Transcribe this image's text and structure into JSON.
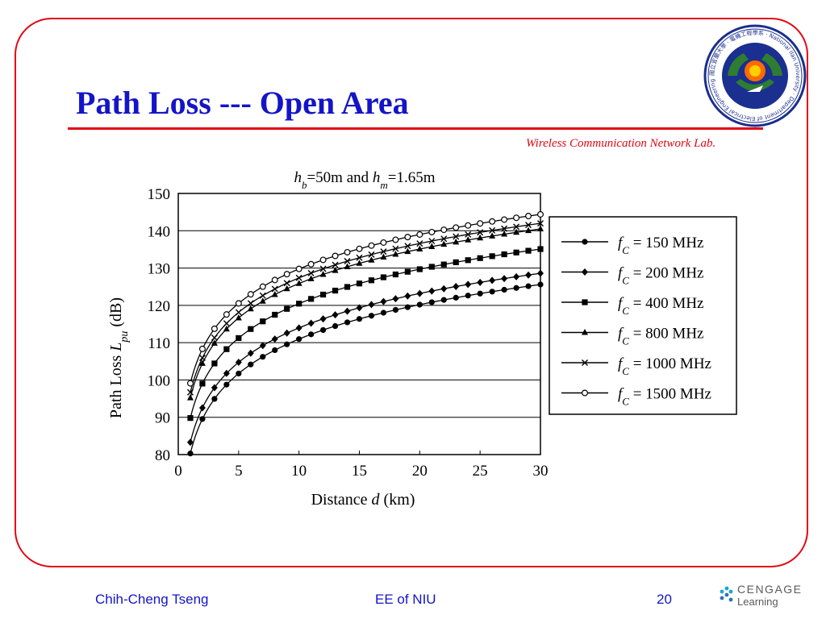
{
  "slide": {
    "title": "Path Loss --- Open Area",
    "lab_name": "Wireless Communication Network Lab."
  },
  "footer": {
    "author": "Chih-Cheng Tseng",
    "department": "EE of NIU",
    "page_number": "20",
    "logo_line1": "CENGAGE",
    "logo_line2": "Learning"
  },
  "seal": {
    "text_ring": "國立宜蘭大學 · 電機工程學系 · National Ilan University · Department of Electrical Engineering",
    "colors": {
      "outer": "#1a2f8f",
      "inner": "#2e7d32",
      "center": "#ff6a00",
      "ring_bg": "#ffffff"
    }
  },
  "chart_data": {
    "type": "line",
    "title_parts": [
      {
        "text": "h",
        "style": "italic"
      },
      {
        "text": "b",
        "style": "italic-sub"
      },
      {
        "text": "=50m and ",
        "style": "normal"
      },
      {
        "text": "h",
        "style": "italic"
      },
      {
        "text": "m",
        "style": "italic-sub"
      },
      {
        "text": "=1.65m",
        "style": "normal"
      }
    ],
    "xlabel_parts": [
      {
        "text": "Distance ",
        "style": "normal"
      },
      {
        "text": "d",
        "style": "italic"
      },
      {
        "text": " (km)",
        "style": "normal"
      }
    ],
    "ylabel_parts": [
      {
        "text": "Path Loss ",
        "style": "normal"
      },
      {
        "text": "L",
        "style": "italic"
      },
      {
        "text": "pu",
        "style": "italic-sub"
      },
      {
        "text": " (dB)",
        "style": "normal"
      }
    ],
    "xlim": [
      0,
      30
    ],
    "ylim": [
      80,
      150
    ],
    "xticks": [
      0,
      5,
      10,
      15,
      20,
      25,
      30
    ],
    "yticks": [
      80,
      90,
      100,
      110,
      120,
      130,
      140,
      150
    ],
    "grid": "horizontal",
    "legend_position": "right",
    "marker_x": [
      1,
      2,
      3,
      4,
      5,
      6,
      7,
      8,
      9,
      10,
      11,
      12,
      13,
      14,
      15,
      16,
      17,
      18,
      19,
      20,
      21,
      22,
      23,
      24,
      25,
      26,
      27,
      28,
      29,
      30
    ],
    "series": [
      {
        "name": "f_C = 150 MHz",
        "legend_prefix": "f",
        "legend_sub": "C",
        "legend_suffix": " = 150 MHz",
        "marker": "circle-filled",
        "y_at_1km": 80.3,
        "slope_db_per_decade": 30.66
      },
      {
        "name": "f_C = 200 MHz",
        "legend_prefix": "f",
        "legend_sub": "C",
        "legend_suffix": " = 200 MHz",
        "marker": "diamond-filled",
        "y_at_1km": 83.3,
        "slope_db_per_decade": 30.66
      },
      {
        "name": "f_C = 400 MHz",
        "legend_prefix": "f",
        "legend_sub": "C",
        "legend_suffix": " = 400 MHz",
        "marker": "square-filled",
        "y_at_1km": 89.8,
        "slope_db_per_decade": 30.66
      },
      {
        "name": "f_C = 800 MHz",
        "legend_prefix": "f",
        "legend_sub": "C",
        "legend_suffix": " = 800 MHz",
        "marker": "triangle-filled",
        "y_at_1km": 95.2,
        "slope_db_per_decade": 30.66
      },
      {
        "name": "f_C = 1000 MHz",
        "legend_prefix": "f",
        "legend_sub": "C",
        "legend_suffix": " = 1000 MHz",
        "marker": "cross",
        "y_at_1km": 96.7,
        "slope_db_per_decade": 30.66
      },
      {
        "name": "f_C = 1500 MHz",
        "legend_prefix": "f",
        "legend_sub": "C",
        "legend_suffix": " = 1500 MHz",
        "marker": "circle-open",
        "y_at_1km": 99.1,
        "slope_db_per_decade": 30.66
      }
    ]
  }
}
